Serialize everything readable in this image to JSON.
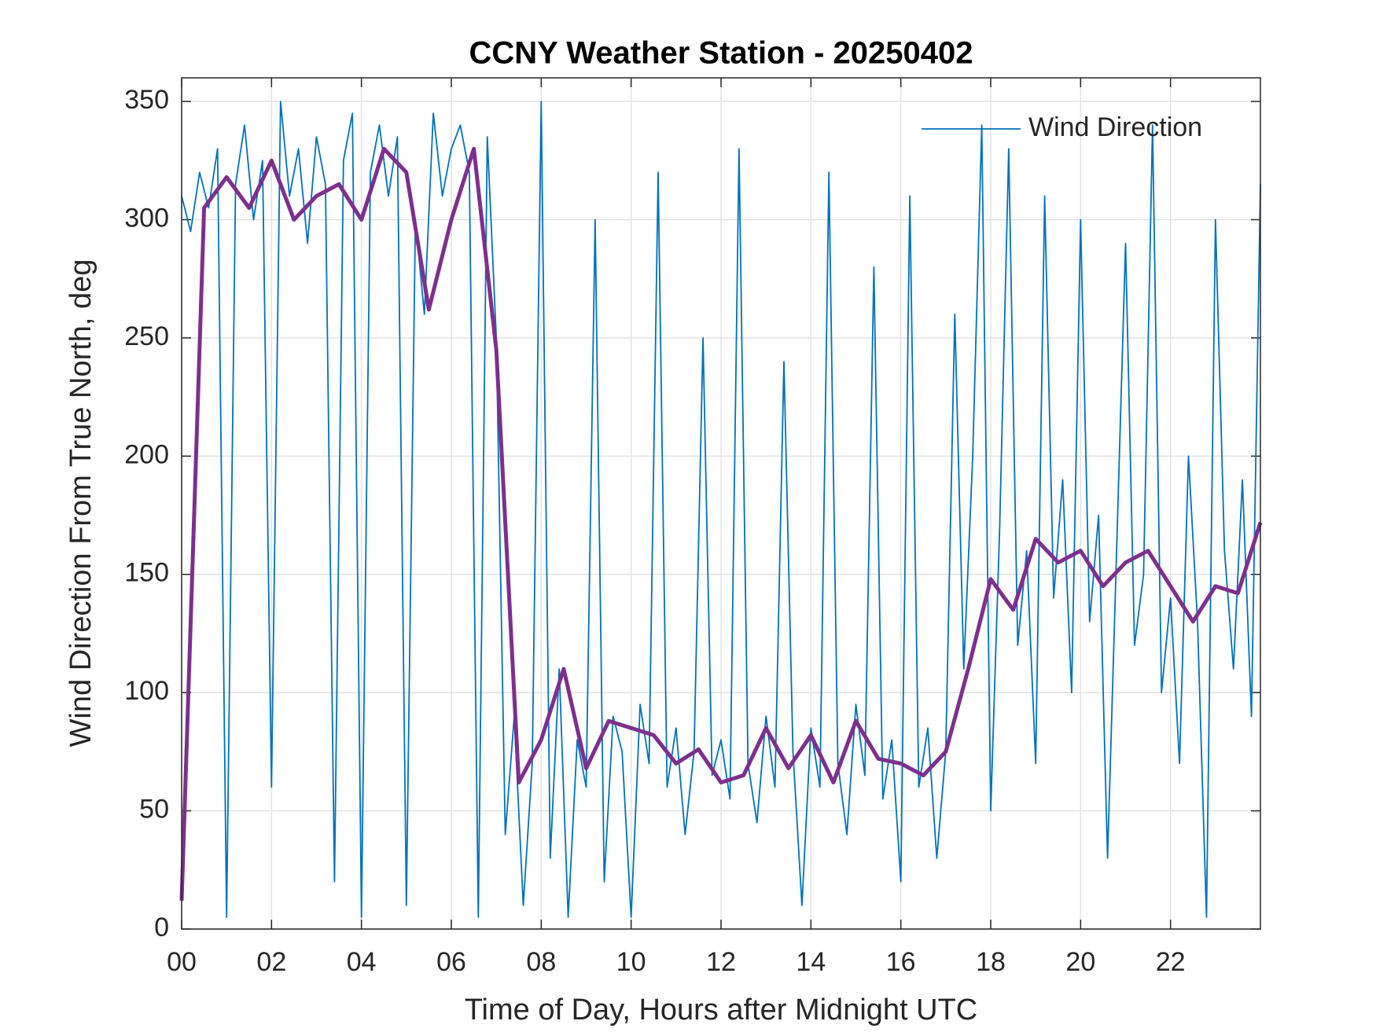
{
  "chart_data": {
    "type": "line",
    "title": "CCNY Weather Station - 20250402",
    "xlabel": "Time of Day, Hours after Midnight UTC",
    "ylabel": "Wind Direction From True North, deg",
    "xlim": [
      0,
      24
    ],
    "ylim": [
      0,
      360
    ],
    "xticks": [
      {
        "value": 0,
        "label": "00"
      },
      {
        "value": 2,
        "label": "02"
      },
      {
        "value": 4,
        "label": "04"
      },
      {
        "value": 6,
        "label": "06"
      },
      {
        "value": 8,
        "label": "08"
      },
      10,
      12,
      14,
      16,
      18,
      20,
      22
    ],
    "yticks": [
      0,
      50,
      100,
      150,
      200,
      250,
      300,
      350
    ],
    "grid": true,
    "legend": "upper-right",
    "series": [
      {
        "name": "Wind Direction",
        "color": "#0072bd",
        "x": [
          0,
          0.2,
          0.4,
          0.6,
          0.8,
          1,
          1.2,
          1.4,
          1.6,
          1.8,
          2,
          2.2,
          2.4,
          2.6,
          2.8,
          3,
          3.2,
          3.4,
          3.6,
          3.8,
          4,
          4.2,
          4.4,
          4.6,
          4.8,
          5,
          5.2,
          5.4,
          5.6,
          5.8,
          6,
          6.2,
          6.4,
          6.6,
          6.8,
          7,
          7.2,
          7.4,
          7.6,
          7.8,
          8,
          8.2,
          8.4,
          8.6,
          8.8,
          9,
          9.2,
          9.4,
          9.6,
          9.8,
          10,
          10.2,
          10.4,
          10.6,
          10.8,
          11,
          11.2,
          11.4,
          11.6,
          11.8,
          12,
          12.2,
          12.4,
          12.6,
          12.8,
          13,
          13.2,
          13.4,
          13.6,
          13.8,
          14,
          14.2,
          14.4,
          14.6,
          14.8,
          15,
          15.2,
          15.4,
          15.6,
          15.8,
          16,
          16.2,
          16.4,
          16.6,
          16.8,
          17,
          17.2,
          17.4,
          17.6,
          17.8,
          18,
          18.2,
          18.4,
          18.6,
          18.8,
          19,
          19.2,
          19.4,
          19.6,
          19.8,
          20,
          20.2,
          20.4,
          20.6,
          20.8,
          21,
          21.2,
          21.4,
          21.6,
          21.8,
          22,
          22.2,
          22.4,
          22.6,
          22.8,
          23,
          23.2,
          23.4,
          23.6,
          23.8,
          24
        ],
        "values": [
          310,
          295,
          320,
          305,
          330,
          5,
          315,
          340,
          300,
          325,
          60,
          350,
          310,
          330,
          290,
          335,
          315,
          20,
          325,
          345,
          5,
          320,
          340,
          310,
          335,
          10,
          300,
          260,
          345,
          310,
          330,
          340,
          320,
          5,
          335,
          250,
          40,
          90,
          10,
          70,
          350,
          30,
          110,
          5,
          80,
          60,
          300,
          20,
          90,
          75,
          5,
          95,
          70,
          320,
          60,
          85,
          40,
          75,
          250,
          65,
          80,
          55,
          330,
          70,
          45,
          90,
          60,
          240,
          75,
          10,
          85,
          60,
          320,
          70,
          40,
          95,
          65,
          280,
          55,
          80,
          20,
          310,
          60,
          85,
          30,
          75,
          260,
          110,
          200,
          340,
          50,
          170,
          330,
          120,
          160,
          70,
          310,
          140,
          190,
          100,
          300,
          130,
          175,
          30,
          160,
          290,
          120,
          150,
          340,
          100,
          140,
          70,
          200,
          130,
          5,
          300,
          160,
          110,
          190,
          90,
          315
        ]
      },
      {
        "color": "#7e2f8e",
        "x": [
          0,
          0.5,
          1,
          1.5,
          2,
          2.5,
          3,
          3.5,
          4,
          4.5,
          5,
          5.5,
          6,
          6.5,
          7,
          7.5,
          8,
          8.5,
          9,
          9.5,
          10,
          10.5,
          11,
          11.5,
          12,
          12.5,
          13,
          13.5,
          14,
          14.5,
          15,
          15.5,
          16,
          16.5,
          17,
          17.5,
          18,
          18.5,
          19,
          19.5,
          20,
          20.5,
          21,
          21.5,
          22,
          22.5,
          23,
          23.5,
          24
        ],
        "values": [
          12,
          305,
          318,
          305,
          325,
          300,
          310,
          315,
          300,
          330,
          320,
          262,
          300,
          330,
          245,
          62,
          80,
          110,
          68,
          88,
          85,
          82,
          70,
          76,
          62,
          65,
          85,
          68,
          82,
          62,
          88,
          72,
          70,
          65,
          75,
          110,
          148,
          135,
          165,
          155,
          160,
          145,
          155,
          160,
          145,
          130,
          145,
          142,
          172
        ]
      }
    ]
  }
}
